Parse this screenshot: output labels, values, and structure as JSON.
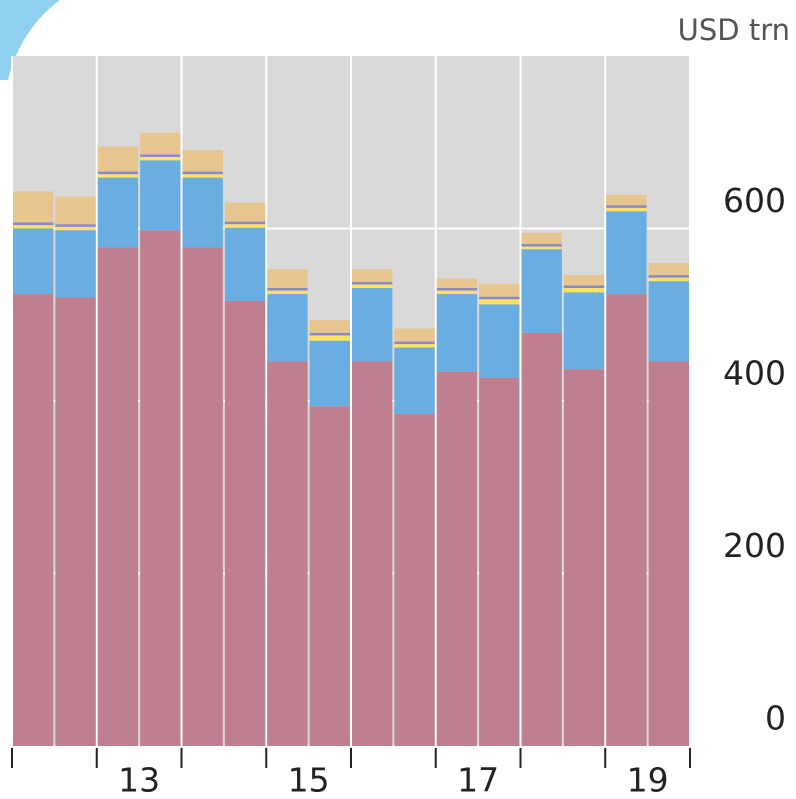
{
  "chart_data": {
    "type": "stacked_bar",
    "unit_label": "USD trn",
    "categories": [
      null,
      null,
      "13",
      null,
      null,
      null,
      "15",
      null,
      null,
      null,
      "17",
      null,
      null,
      null,
      "19",
      null
    ],
    "series": [
      {
        "color": "#c07f8e",
        "values": [
          524,
          520,
          578,
          598,
          578,
          516,
          446,
          394,
          446,
          385,
          434,
          427,
          479,
          437,
          524,
          446
        ]
      },
      {
        "color": "#6aade0",
        "values": [
          76,
          78,
          81,
          81,
          81,
          85,
          78,
          76,
          85,
          77,
          90,
          85,
          97,
          89,
          96,
          93
        ]
      },
      {
        "color": "#fde25e",
        "values": [
          4,
          4,
          4,
          4,
          4,
          4,
          4,
          6,
          4,
          4,
          4,
          6,
          3,
          5,
          4,
          4
        ]
      },
      {
        "color": "#8a88c8",
        "values": [
          3,
          3,
          3,
          3,
          3,
          3,
          3,
          3,
          3,
          3,
          3,
          3,
          3,
          3,
          3,
          3
        ]
      },
      {
        "color": "#e6c58f",
        "values": [
          36,
          32,
          29,
          25,
          25,
          22,
          22,
          15,
          15,
          15,
          11,
          15,
          13,
          12,
          12,
          14
        ]
      }
    ],
    "ylim": [
      0,
      800
    ],
    "yticks": [
      0,
      200,
      400,
      600
    ],
    "grid": true
  }
}
